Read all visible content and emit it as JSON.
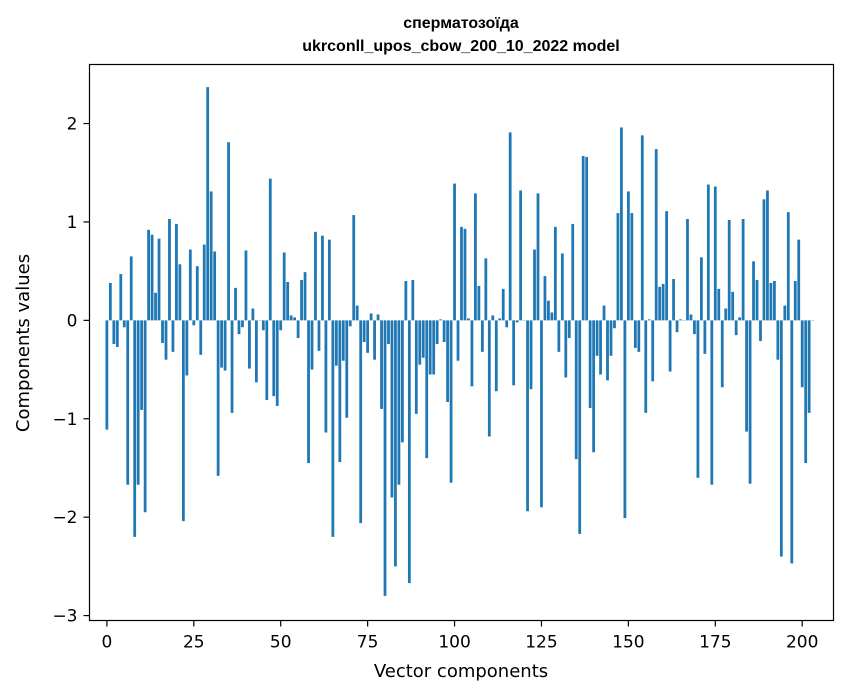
{
  "chart_data": {
    "type": "bar",
    "title": "сперматозоїда",
    "subtitle": "ukrconll_upos_cbow_200_10_2022 model",
    "xlabel": "Vector components",
    "ylabel": "Components values",
    "xlim": [
      -5,
      209
    ],
    "ylim": [
      -3.05,
      2.6
    ],
    "xticks": [
      0,
      25,
      50,
      75,
      100,
      125,
      150,
      175,
      200
    ],
    "yticks": [
      -3,
      -2,
      -1,
      0,
      1,
      2
    ],
    "ytick_labels": [
      "−3",
      "−2",
      "−1",
      "0",
      "1",
      "2"
    ],
    "bar_color": "#1f77b4",
    "grid": false,
    "values": [
      -1.11,
      0.38,
      -0.24,
      -0.27,
      0.47,
      -0.07,
      -1.67,
      0.65,
      -2.2,
      -1.67,
      -0.91,
      -1.95,
      0.92,
      0.87,
      0.28,
      0.83,
      -0.23,
      -0.4,
      1.03,
      -0.32,
      0.98,
      0.57,
      -2.04,
      -0.56,
      0.72,
      -0.05,
      0.55,
      -0.35,
      0.77,
      2.37,
      1.31,
      0.7,
      -1.58,
      -0.48,
      -0.51,
      1.81,
      -0.94,
      0.33,
      -0.14,
      -0.07,
      0.71,
      -0.49,
      0.12,
      -0.63,
      0.0,
      -0.1,
      -0.81,
      1.44,
      -0.77,
      -0.87,
      -0.1,
      0.69,
      0.39,
      0.05,
      0.03,
      -0.18,
      0.41,
      0.49,
      -1.45,
      -0.5,
      0.9,
      -0.31,
      0.86,
      -1.14,
      0.82,
      -2.2,
      -0.46,
      -1.44,
      -0.41,
      -0.99,
      -0.06,
      1.07,
      0.15,
      -2.06,
      -0.22,
      -0.33,
      0.07,
      -0.4,
      0.06,
      -0.9,
      -2.8,
      -0.24,
      -1.8,
      -2.5,
      -1.67,
      -1.24,
      0.4,
      -2.67,
      0.41,
      -0.95,
      -0.45,
      -0.38,
      -1.4,
      -0.55,
      -0.55,
      -0.24,
      0.01,
      -0.22,
      -0.83,
      -1.65,
      1.39,
      -0.41,
      0.95,
      0.93,
      0.02,
      -0.67,
      1.29,
      0.35,
      -0.32,
      0.63,
      -1.18,
      0.05,
      -0.72,
      0.02,
      0.32,
      -0.07,
      1.91,
      -0.66,
      -0.02,
      1.32,
      0.0,
      -1.94,
      -0.7,
      0.72,
      1.29,
      -1.9,
      0.45,
      0.2,
      0.08,
      0.95,
      -0.32,
      0.68,
      -0.58,
      -0.18,
      0.98,
      -1.41,
      -2.17,
      1.67,
      1.66,
      -0.89,
      -1.34,
      -0.36,
      -0.55,
      0.15,
      -0.61,
      -0.36,
      -0.08,
      1.09,
      1.96,
      -2.01,
      1.31,
      1.09,
      -0.28,
      -0.32,
      1.88,
      -0.94,
      0.01,
      -0.62,
      1.74,
      0.34,
      0.37,
      1.11,
      -0.52,
      0.42,
      -0.12,
      0.01,
      0.0,
      1.03,
      0.06,
      -0.14,
      -1.6,
      0.64,
      -0.34,
      1.38,
      -1.67,
      1.36,
      0.32,
      -0.68,
      0.12,
      1.02,
      0.29,
      -0.15,
      0.03,
      1.03,
      -1.13,
      -1.66,
      0.6,
      0.41,
      -0.21,
      1.23,
      1.32,
      0.38,
      0.4,
      -0.4,
      -2.4,
      0.15,
      1.1,
      -2.47,
      0.4,
      0.82,
      -0.68,
      -1.45,
      -0.94,
      0.0
    ]
  }
}
